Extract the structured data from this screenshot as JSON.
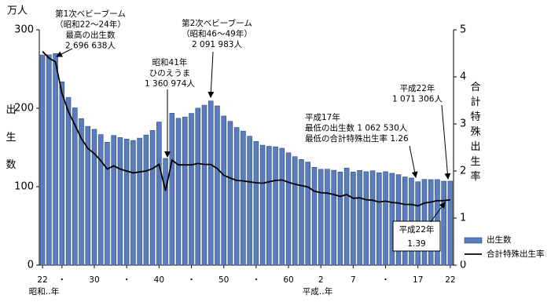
{
  "chart_data": {
    "type": "bar",
    "y_unit": "万人",
    "y_label": "出生数",
    "y2_label": "合計特殊出生率",
    "x_label_showa": "昭和‥年",
    "x_label_heisei": "平成‥年",
    "categories": [
      "22",
      null,
      null,
      "・",
      null,
      null,
      null,
      null,
      "30",
      null,
      null,
      null,
      null,
      "・",
      null,
      null,
      null,
      null,
      "40",
      null,
      null,
      null,
      null,
      "・",
      null,
      null,
      null,
      null,
      "50",
      null,
      null,
      null,
      null,
      "・",
      null,
      null,
      null,
      null,
      "60",
      null,
      null,
      null,
      null,
      "2",
      null,
      null,
      null,
      null,
      "7",
      null,
      null,
      null,
      null,
      "・",
      null,
      null,
      null,
      null,
      "17",
      null,
      null,
      null,
      null,
      "22"
    ],
    "series": [
      {
        "name": "出生数",
        "color": "#5a7ebd",
        "values": [
          267.9,
          268.2,
          269.7,
          233.8,
          213.8,
          200.5,
          186.8,
          176.9,
          173.1,
          166.5,
          156.7,
          165.3,
          162.6,
          160.6,
          158.9,
          161.9,
          165.9,
          171.7,
          182.4,
          136.1,
          193.6,
          187.2,
          188.9,
          193.4,
          200.1,
          203.9,
          209.2,
          203.0,
          190.1,
          183.3,
          175.5,
          170.9,
          164.3,
          157.7,
          152.9,
          151.5,
          150.9,
          149.0,
          143.2,
          138.3,
          134.7,
          131.4,
          124.7,
          122.2,
          122.3,
          120.9,
          118.8,
          123.8,
          118.7,
          120.7,
          119.2,
          120.3,
          117.8,
          119.1,
          117.1,
          115.4,
          112.4,
          111.1,
          106.3,
          109.3,
          109.0,
          109.1,
          107.0,
          107.1
        ]
      },
      {
        "name": "合計特殊出生率",
        "color": "#000000",
        "axis": "y2",
        "values": [
          4.54,
          4.4,
          4.32,
          3.65,
          3.26,
          2.98,
          2.69,
          2.48,
          2.37,
          2.22,
          2.04,
          2.11,
          2.04,
          2.0,
          1.96,
          1.98,
          2.0,
          2.05,
          2.14,
          1.58,
          2.23,
          2.13,
          2.13,
          2.13,
          2.16,
          2.14,
          2.14,
          2.05,
          1.91,
          1.85,
          1.8,
          1.79,
          1.77,
          1.75,
          1.74,
          1.77,
          1.8,
          1.81,
          1.76,
          1.72,
          1.69,
          1.66,
          1.57,
          1.54,
          1.53,
          1.5,
          1.46,
          1.5,
          1.42,
          1.43,
          1.39,
          1.38,
          1.34,
          1.36,
          1.33,
          1.32,
          1.29,
          1.29,
          1.26,
          1.32,
          1.34,
          1.37,
          1.37,
          1.39
        ]
      }
    ],
    "ylim": [
      0,
      300
    ],
    "yticks": [
      0,
      100,
      200,
      300
    ],
    "y2lim": [
      0,
      5
    ],
    "y2ticks": [
      0,
      1,
      2,
      3,
      4,
      5
    ],
    "grid": false,
    "legend": "lower right",
    "annotations": [
      {
        "lines": [
          "第1次ベビーブーム",
          "（昭和22～24年）",
          "最高の出生数",
          "2 696 638人"
        ]
      },
      {
        "lines": [
          "第2次ベビーブーム",
          "（昭和46～49年）",
          "2 091 983人"
        ]
      },
      {
        "lines": [
          "昭和41年",
          "ひのえうま",
          "1 360 974人"
        ]
      },
      {
        "lines": [
          "平成17年",
          "最低の出生数 1 062 530人",
          "最低の合計特殊出生率 1.26"
        ]
      },
      {
        "lines": [
          "平成22年",
          "1 071 306人"
        ]
      },
      {
        "lines": [
          "平成22年",
          "1.39"
        ]
      }
    ]
  }
}
